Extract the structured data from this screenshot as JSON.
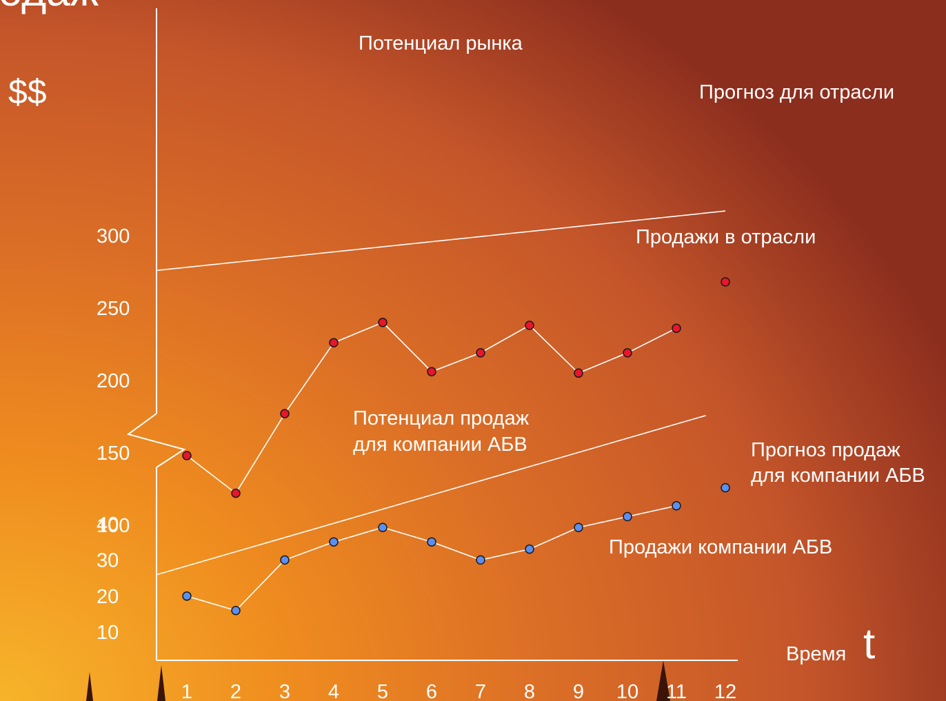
{
  "title_fragment": "одаж",
  "currency_label": "$$",
  "time_label": "Время",
  "time_symbol": "t",
  "colors": {
    "industry_point": "#e8152b",
    "company_point": "#5b8ff0",
    "point_stroke": "#1a1a1a",
    "line": "#ffffff"
  },
  "chart_data": {
    "type": "line",
    "x": [
      1,
      2,
      3,
      4,
      5,
      6,
      7,
      8,
      9,
      10,
      11,
      12
    ],
    "upper_y_ticks": [
      300,
      250,
      200,
      150,
      100
    ],
    "lower_y_ticks": [
      40,
      30,
      20,
      10
    ],
    "series": [
      {
        "name": "Продажи в отрасли",
        "x": [
          1,
          2,
          3,
          4,
          5,
          6,
          7,
          8,
          9,
          10,
          11
        ],
        "values": [
          148,
          122,
          177,
          226,
          240,
          206,
          219,
          238,
          205,
          219,
          236
        ]
      },
      {
        "name": "Прогноз для отрасли",
        "x": [
          12
        ],
        "values": [
          268
        ]
      },
      {
        "name": "Потенциал рынка",
        "x": [
          0.4,
          12
        ],
        "values": [
          276,
          317
        ]
      },
      {
        "name": "Продажи компании АБВ",
        "x": [
          1,
          2,
          3,
          4,
          5,
          6,
          7,
          8,
          9,
          10,
          11
        ],
        "values": [
          20,
          16,
          30,
          35,
          39,
          35,
          30,
          33,
          39,
          42,
          45
        ]
      },
      {
        "name": "Прогноз продаж для компании АБВ",
        "x": [
          12
        ],
        "values": [
          50
        ]
      },
      {
        "name": "Потенциал продаж для компании АБВ",
        "x": [
          0.4,
          11.6
        ],
        "values": [
          26,
          70
        ]
      }
    ],
    "labels": {
      "market_potential": "Потенциал рынка",
      "industry_forecast": "Прогноз для отрасли",
      "industry_sales": "Продажи в отрасли",
      "company_potential_line1": "Потенциал продаж",
      "company_potential_line2": "для компании АБВ",
      "company_forecast_line1": "Прогноз продаж",
      "company_forecast_line2": "для компании АБВ",
      "company_sales": "Продажи компании АБВ"
    },
    "axis_break": true,
    "grid": false
  }
}
